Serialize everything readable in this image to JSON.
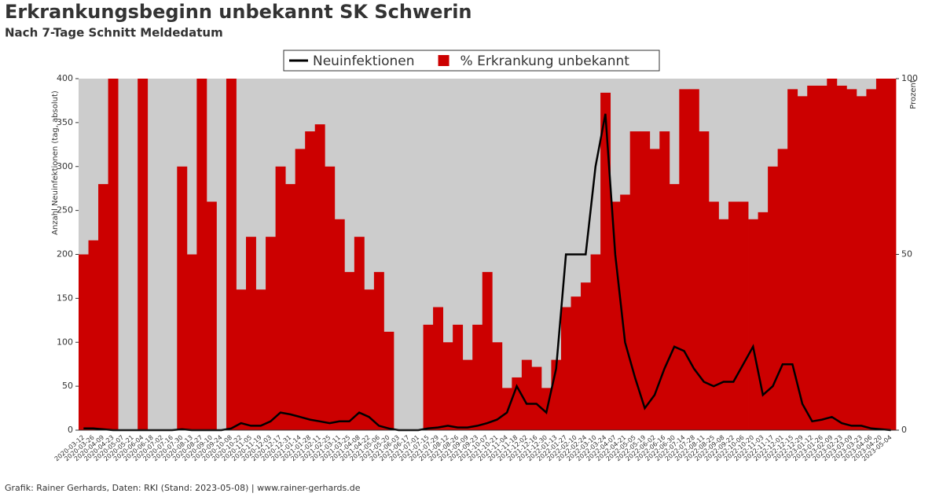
{
  "chart_data": {
    "type": "line_area",
    "title": "Erkrankungsbeginn unbekannt SK Schwerin",
    "subtitle": "Nach 7-Tage Schnitt Meldedatum",
    "y_label": "Anzahl Neuinfektionen (tag, absolut)",
    "y2_label": "Prozent",
    "footer": "Grafik: Rainer Gerhards, Daten: RKI (Stand: 2023-05-08) | www.rainer-gerhards.de",
    "x": [
      "2020-03-12",
      "2020-03-26",
      "2020-04-09",
      "2020-04-23",
      "2020-05-07",
      "2020-05-21",
      "2020-06-04",
      "2020-06-18",
      "2020-07-02",
      "2020-07-16",
      "2020-07-30",
      "2020-08-13",
      "2020-08-27",
      "2020-09-10",
      "2020-09-24",
      "2020-10-08",
      "2020-10-22",
      "2020-11-05",
      "2020-11-19",
      "2020-12-03",
      "2020-12-17",
      "2020-12-31",
      "2021-01-14",
      "2021-01-28",
      "2021-02-11",
      "2021-02-25",
      "2021-03-11",
      "2021-03-25",
      "2021-04-08",
      "2021-04-22",
      "2021-05-06",
      "2021-05-20",
      "2021-06-03",
      "2021-06-17",
      "2021-07-01",
      "2021-07-15",
      "2021-07-29",
      "2021-08-12",
      "2021-08-26",
      "2021-09-09",
      "2021-09-23",
      "2021-10-07",
      "2021-10-21",
      "2021-11-04",
      "2021-11-18",
      "2021-12-02",
      "2021-12-16",
      "2021-12-30",
      "2022-01-13",
      "2022-01-27",
      "2022-02-10",
      "2022-02-24",
      "2022-03-10",
      "2022-03-24",
      "2022-04-07",
      "2022-04-21",
      "2022-05-05",
      "2022-05-19",
      "2022-06-02",
      "2022-06-16",
      "2022-06-30",
      "2022-07-14",
      "2022-07-28",
      "2022-08-11",
      "2022-08-25",
      "2022-09-08",
      "2022-09-22",
      "2022-10-06",
      "2022-10-20",
      "2022-11-03",
      "2022-11-17",
      "2022-12-01",
      "2022-12-15",
      "2022-12-29",
      "2023-01-12",
      "2023-01-26",
      "2023-02-09",
      "2023-02-23",
      "2023-03-09",
      "2023-03-23",
      "2023-04-06",
      "2023-04-20",
      "2023-05-04"
    ],
    "series": [
      {
        "name": "Neuinfektionen",
        "color": "#000000",
        "kind": "line",
        "axis": "y",
        "values": [
          2,
          2,
          1,
          0,
          0,
          0,
          0,
          0,
          0,
          0,
          1,
          0,
          0,
          0,
          0,
          2,
          8,
          5,
          5,
          10,
          20,
          18,
          15,
          12,
          10,
          8,
          10,
          10,
          20,
          15,
          5,
          2,
          0,
          0,
          0,
          2,
          3,
          5,
          3,
          3,
          5,
          8,
          12,
          20,
          50,
          30,
          30,
          20,
          70,
          200,
          200,
          200,
          300,
          360,
          200,
          100,
          60,
          25,
          40,
          70,
          95,
          90,
          70,
          55,
          50,
          55,
          55,
          75,
          95,
          40,
          50,
          75,
          75,
          30,
          10,
          12,
          15,
          8,
          5,
          5,
          2,
          1,
          0
        ]
      },
      {
        "name": "% Erkrankung unbekannt",
        "color": "#cc0000",
        "kind": "area",
        "axis": "y2",
        "values": [
          50,
          54,
          70,
          100,
          0,
          0,
          100,
          0,
          0,
          0,
          75,
          50,
          100,
          65,
          0,
          100,
          40,
          55,
          40,
          55,
          75,
          70,
          80,
          85,
          87,
          75,
          60,
          45,
          55,
          40,
          45,
          28,
          0,
          0,
          0,
          30,
          35,
          25,
          30,
          20,
          30,
          45,
          25,
          12,
          15,
          20,
          18,
          12,
          20,
          35,
          38,
          42,
          50,
          96,
          65,
          67,
          85,
          85,
          80,
          85,
          70,
          97,
          97,
          85,
          65,
          60,
          65,
          65,
          60,
          62,
          75,
          80,
          97,
          95,
          98,
          98,
          100,
          98,
          97,
          95,
          97,
          100,
          100
        ]
      }
    ],
    "ylim": [
      0,
      400
    ],
    "yticks": [
      0,
      50,
      100,
      150,
      200,
      250,
      300,
      350,
      400
    ],
    "y2lim": [
      0,
      100
    ],
    "y2ticks": [
      0,
      50,
      100
    ],
    "background": "#cccccc"
  }
}
